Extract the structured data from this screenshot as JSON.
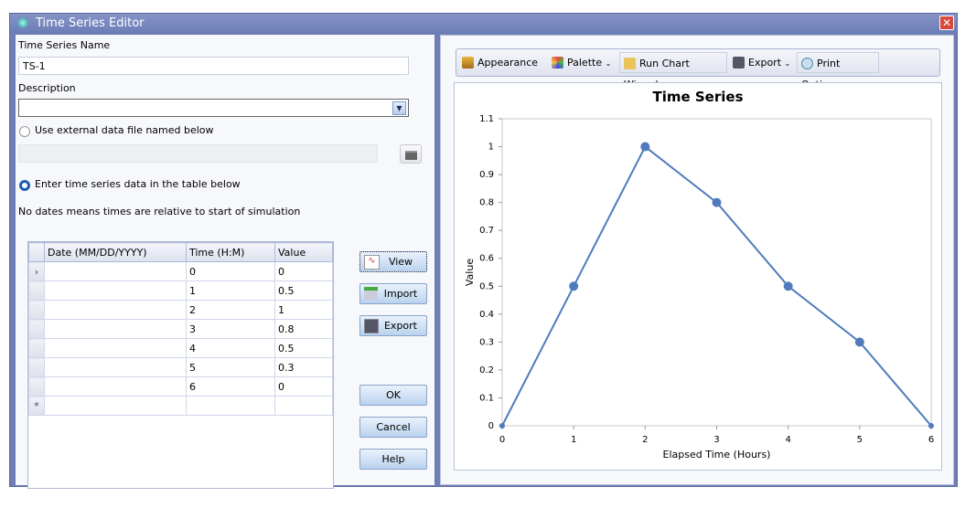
{
  "window": {
    "title": "Time Series Editor",
    "close": "✕"
  },
  "form": {
    "name_label": "Time Series Name",
    "name_value": "TS-1",
    "description_label": "Description",
    "description_value": "",
    "external_radio": "Use external data file named below",
    "external_file": "",
    "table_radio": "Enter time series data in the table below",
    "note": "No dates means times are relative to start of simulation"
  },
  "table": {
    "headers": [
      "Date (MM/DD/YYYY)",
      "Time (H:M)",
      "Value"
    ],
    "rows": [
      [
        "",
        "0",
        "0"
      ],
      [
        "",
        "1",
        "0.5"
      ],
      [
        "",
        "2",
        "1"
      ],
      [
        "",
        "3",
        "0.8"
      ],
      [
        "",
        "4",
        "0.5"
      ],
      [
        "",
        "5",
        "0.3"
      ],
      [
        "",
        "6",
        "0"
      ]
    ],
    "current_marker": "›",
    "new_marker": "*"
  },
  "buttons": {
    "view": "View",
    "import": "Import",
    "export": "Export",
    "ok": "OK",
    "cancel": "Cancel",
    "help": "Help"
  },
  "toolbar": {
    "appearance": "Appearance",
    "palette": "Palette",
    "wizard": "Run Chart Wizard",
    "export": "Export",
    "print": "Print Options",
    "dropdown": "⌄"
  },
  "chart_data": {
    "type": "line",
    "title": "Time Series",
    "xlabel": "Elapsed Time (Hours)",
    "ylabel": "Value",
    "x": [
      0,
      1,
      2,
      3,
      4,
      5,
      6
    ],
    "y": [
      0,
      0.5,
      1,
      0.8,
      0.5,
      0.3,
      0
    ],
    "xlim": [
      0,
      6
    ],
    "ylim": [
      0,
      1.1
    ],
    "xticks": [
      "0",
      "1",
      "2",
      "3",
      "4",
      "5",
      "6"
    ],
    "yticks": [
      "0",
      "0.1",
      "0.2",
      "0.3",
      "0.4",
      "0.5",
      "0.6",
      "0.7",
      "0.8",
      "0.9",
      "1",
      "1.1"
    ],
    "grid": false,
    "color": "#4f7bbd"
  }
}
